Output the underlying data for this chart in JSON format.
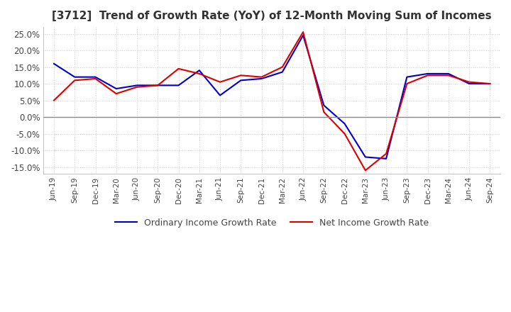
{
  "title": "[3712]  Trend of Growth Rate (YoY) of 12-Month Moving Sum of Incomes",
  "title_fontsize": 11,
  "ylim": [
    -17,
    27
  ],
  "yticks": [
    -15,
    -10,
    -5,
    0,
    5,
    10,
    15,
    20,
    25
  ],
  "background_color": "#ffffff",
  "plot_bg_color": "#ffffff",
  "grid_color": "#cccccc",
  "legend_labels": [
    "Ordinary Income Growth Rate",
    "Net Income Growth Rate"
  ],
  "line_colors": [
    "#0000cc",
    "#dd0000"
  ],
  "x_labels": [
    "Jun-19",
    "Sep-19",
    "Dec-19",
    "Mar-20",
    "Jun-20",
    "Sep-20",
    "Dec-20",
    "Mar-21",
    "Jun-21",
    "Sep-21",
    "Dec-21",
    "Mar-22",
    "Jun-22",
    "Sep-22",
    "Dec-22",
    "Mar-23",
    "Jun-23",
    "Sep-23",
    "Dec-23",
    "Mar-24",
    "Jun-24",
    "Sep-24"
  ],
  "ordinary_income": [
    16.0,
    12.0,
    12.0,
    8.5,
    9.5,
    9.5,
    9.5,
    14.0,
    6.5,
    11.0,
    11.5,
    13.5,
    24.5,
    3.5,
    -2.0,
    -12.0,
    -12.5,
    12.0,
    13.0,
    13.0,
    10.0,
    10.0
  ],
  "net_income": [
    5.0,
    11.0,
    11.5,
    7.0,
    9.0,
    9.5,
    14.5,
    13.0,
    10.5,
    12.5,
    12.0,
    15.0,
    25.5,
    1.5,
    -5.0,
    -16.0,
    -11.0,
    10.0,
    12.5,
    12.5,
    10.5,
    10.0
  ]
}
